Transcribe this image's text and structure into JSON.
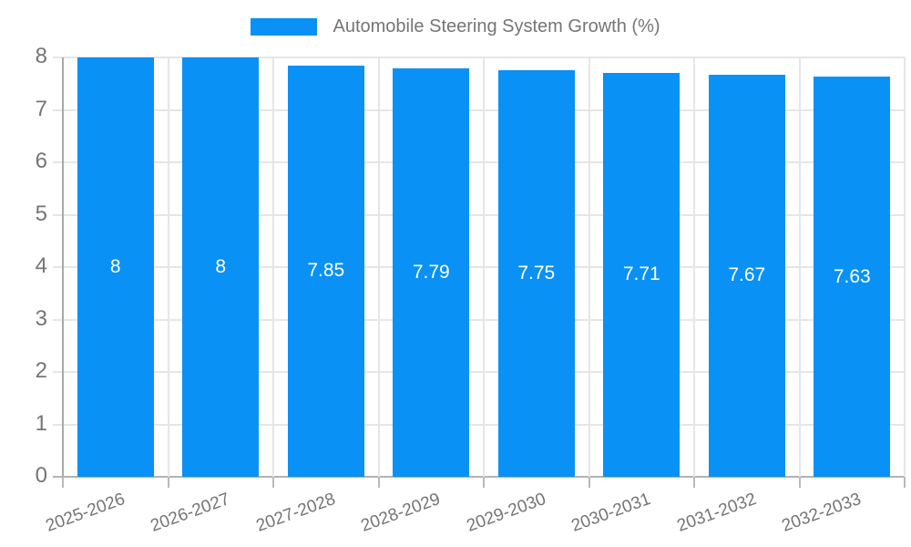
{
  "legend": {
    "label": "Automobile Steering System Growth (%)"
  },
  "chart_data": {
    "type": "bar",
    "title": "Automobile Steering System Growth (%)",
    "categories": [
      "2025-2026",
      "2026-2027",
      "2027-2028",
      "2028-2029",
      "2029-2030",
      "2030-2031",
      "2031-2032",
      "2032-2033"
    ],
    "values": [
      8,
      8,
      7.85,
      7.79,
      7.75,
      7.71,
      7.67,
      7.63
    ],
    "bar_labels": [
      "8",
      "8",
      "7.85",
      "7.79",
      "7.75",
      "7.71",
      "7.67",
      "7.63"
    ],
    "xlabel": "",
    "ylabel": "",
    "ylim": [
      0,
      8
    ],
    "ytick_labels": [
      "0",
      "1",
      "2",
      "3",
      "4",
      "5",
      "6",
      "7",
      "8"
    ],
    "grid": true,
    "legend_position": "top-center",
    "colors": {
      "bar": "#0991f6",
      "bar_label_text": "#ffffff",
      "legend_text": "#757575",
      "axis_text": "#757575",
      "gridline": "#e6e6e6",
      "axis_line": "#a8a8a8",
      "baseline": "#b3b3b3",
      "background": "#ffffff"
    }
  }
}
